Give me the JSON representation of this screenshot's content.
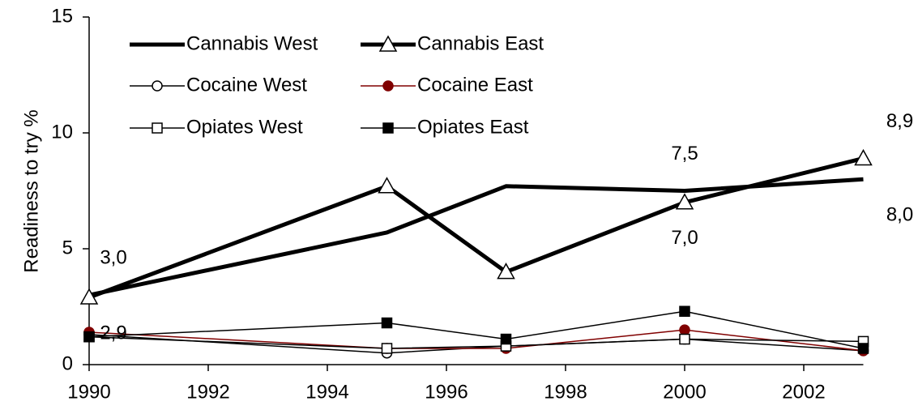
{
  "chart_data": {
    "type": "line",
    "y_label": "Readiness to try %",
    "x": [
      1990,
      1995,
      1997,
      2000,
      2003
    ],
    "xlim": [
      1990,
      2003
    ],
    "xticks": [
      1990,
      1992,
      1994,
      1996,
      1998,
      2000,
      2002
    ],
    "ylim": [
      0,
      15
    ],
    "yticks": [
      0,
      5,
      10,
      15
    ],
    "grid": false,
    "legend": "upper left",
    "series": [
      {
        "name": "Cannabis West",
        "color": "#000000",
        "line_width": 5,
        "marker": "none",
        "values": [
          3.0,
          5.7,
          7.7,
          7.5,
          8.0
        ],
        "value_labels": [
          "3,0",
          null,
          null,
          "7,5",
          "8,0"
        ]
      },
      {
        "name": "Cannabis East",
        "color": "#000000",
        "line_width": 5,
        "marker": "open-triangle",
        "values": [
          2.9,
          7.7,
          4.0,
          7.0,
          8.9
        ],
        "value_labels": [
          "2,9",
          null,
          null,
          "7,0",
          "8,9"
        ]
      },
      {
        "name": "Cocaine West",
        "color": "#000000",
        "line_width": 1.5,
        "marker": "open-circle",
        "values": [
          1.3,
          0.5,
          0.8,
          1.1,
          0.6
        ]
      },
      {
        "name": "Cocaine East",
        "color": "#800000",
        "line_width": 1.5,
        "marker": "filled-circle",
        "values": [
          1.4,
          0.7,
          0.7,
          1.5,
          0.6
        ]
      },
      {
        "name": "Opiates West",
        "color": "#000000",
        "line_width": 1.5,
        "marker": "open-square",
        "values": [
          1.2,
          0.7,
          0.8,
          1.1,
          1.0
        ]
      },
      {
        "name": "Opiates East",
        "color": "#000000",
        "line_width": 1.5,
        "marker": "filled-square",
        "values": [
          1.2,
          1.8,
          1.1,
          2.3,
          0.7
        ]
      }
    ]
  }
}
